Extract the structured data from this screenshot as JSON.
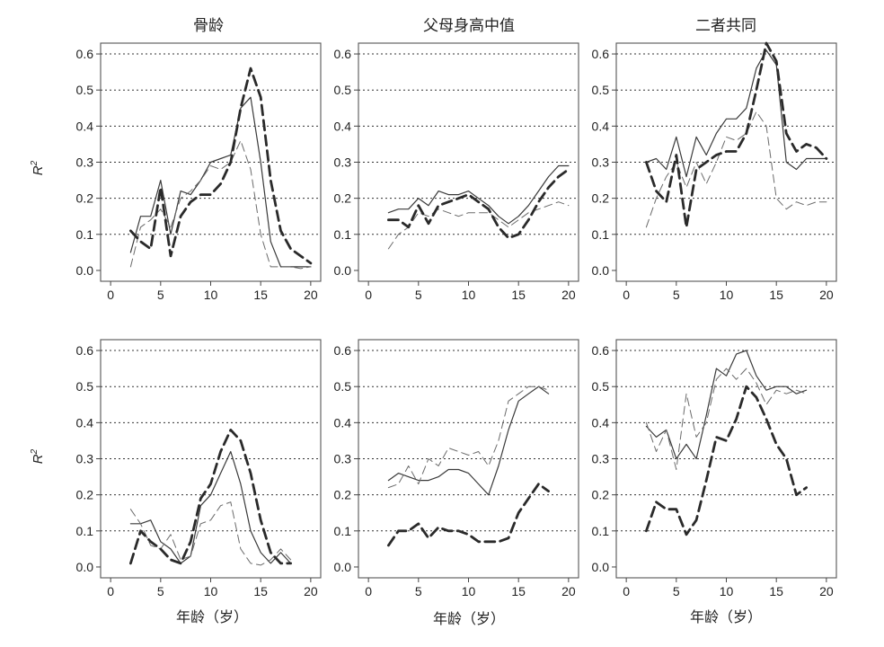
{
  "column_titles": [
    "骨龄",
    "父母身高中值",
    "二者共同"
  ],
  "row_ylabel": "R",
  "row_ylabel_sup": "2",
  "xlabel": "年龄（岁）",
  "chart_data": [
    {
      "type": "line",
      "row": 0,
      "col": 0,
      "title": "骨龄",
      "ylabel": "R²",
      "xlim": [
        -1,
        21
      ],
      "ylim": [
        -0.03,
        0.63
      ],
      "xticks": [
        0,
        5,
        10,
        15,
        20
      ],
      "yticks": [
        0.0,
        0.1,
        0.2,
        0.3,
        0.4,
        0.5,
        0.6
      ],
      "grid": "horizontal-dotted",
      "series": [
        {
          "style": "thin-solid",
          "x": [
            2,
            3,
            4,
            5,
            6,
            7,
            8,
            9,
            10,
            11,
            12,
            13,
            14,
            15,
            16,
            17,
            18,
            19,
            20
          ],
          "y": [
            0.05,
            0.15,
            0.15,
            0.25,
            0.1,
            0.22,
            0.21,
            0.25,
            0.3,
            0.31,
            0.32,
            0.45,
            0.48,
            0.3,
            0.08,
            0.01,
            0.01,
            0.01,
            0.01
          ]
        },
        {
          "style": "thin-dashed",
          "x": [
            2,
            3,
            4,
            5,
            6,
            7,
            8,
            9,
            10,
            11,
            12,
            13,
            14,
            15,
            16,
            17,
            18,
            19,
            20
          ],
          "y": [
            0.01,
            0.12,
            0.14,
            0.17,
            0.12,
            0.2,
            0.22,
            0.25,
            0.29,
            0.28,
            0.3,
            0.36,
            0.28,
            0.1,
            0.01,
            0.01,
            0.01,
            0.005,
            0.01
          ]
        },
        {
          "style": "thick-dashed",
          "x": [
            2,
            3,
            4,
            5,
            6,
            7,
            8,
            9,
            10,
            11,
            12,
            13,
            14,
            15,
            16,
            17,
            18,
            19,
            20
          ],
          "y": [
            0.11,
            0.08,
            0.06,
            0.23,
            0.04,
            0.15,
            0.19,
            0.21,
            0.21,
            0.24,
            0.3,
            0.45,
            0.56,
            0.48,
            0.25,
            0.11,
            0.06,
            0.04,
            0.02
          ]
        }
      ]
    },
    {
      "type": "line",
      "row": 0,
      "col": 1,
      "title": "父母身高中值",
      "xlim": [
        -1,
        21
      ],
      "ylim": [
        -0.03,
        0.63
      ],
      "xticks": [
        0,
        5,
        10,
        15,
        20
      ],
      "yticks": [
        0.0,
        0.1,
        0.2,
        0.3,
        0.4,
        0.5,
        0.6
      ],
      "grid": "horizontal-dotted",
      "series": [
        {
          "style": "thin-solid",
          "x": [
            2,
            3,
            4,
            5,
            6,
            7,
            8,
            9,
            10,
            11,
            12,
            13,
            14,
            15,
            16,
            17,
            18,
            19,
            20
          ],
          "y": [
            0.16,
            0.17,
            0.17,
            0.2,
            0.18,
            0.22,
            0.21,
            0.21,
            0.22,
            0.2,
            0.18,
            0.15,
            0.13,
            0.15,
            0.18,
            0.22,
            0.26,
            0.29,
            0.29
          ]
        },
        {
          "style": "thin-dashed",
          "x": [
            2,
            3,
            4,
            5,
            6,
            7,
            8,
            9,
            10,
            11,
            12,
            13,
            14,
            15,
            16,
            17,
            18,
            19,
            20
          ],
          "y": [
            0.06,
            0.1,
            0.12,
            0.16,
            0.15,
            0.17,
            0.16,
            0.15,
            0.16,
            0.16,
            0.16,
            0.14,
            0.12,
            0.14,
            0.16,
            0.17,
            0.18,
            0.19,
            0.18
          ]
        },
        {
          "style": "thick-dashed",
          "x": [
            2,
            3,
            4,
            5,
            6,
            7,
            8,
            9,
            10,
            11,
            12,
            13,
            14,
            15,
            16,
            17,
            18,
            19,
            20
          ],
          "y": [
            0.14,
            0.14,
            0.12,
            0.18,
            0.13,
            0.18,
            0.19,
            0.2,
            0.21,
            0.19,
            0.17,
            0.12,
            0.09,
            0.1,
            0.14,
            0.19,
            0.23,
            0.26,
            0.28
          ]
        }
      ]
    },
    {
      "type": "line",
      "row": 0,
      "col": 2,
      "title": "二者共同",
      "xlim": [
        -1,
        21
      ],
      "ylim": [
        -0.03,
        0.63
      ],
      "xticks": [
        0,
        5,
        10,
        15,
        20
      ],
      "yticks": [
        0.0,
        0.1,
        0.2,
        0.3,
        0.4,
        0.5,
        0.6
      ],
      "grid": "horizontal-dotted",
      "series": [
        {
          "style": "thin-solid",
          "x": [
            2,
            3,
            4,
            5,
            6,
            7,
            8,
            9,
            10,
            11,
            12,
            13,
            14,
            15,
            16,
            17,
            18,
            19,
            20
          ],
          "y": [
            0.3,
            0.31,
            0.28,
            0.37,
            0.26,
            0.37,
            0.32,
            0.38,
            0.42,
            0.42,
            0.45,
            0.56,
            0.61,
            0.57,
            0.3,
            0.28,
            0.31,
            0.31,
            0.31
          ]
        },
        {
          "style": "thin-dashed",
          "x": [
            2,
            3,
            4,
            5,
            6,
            7,
            8,
            9,
            10,
            11,
            12,
            13,
            14,
            15,
            16,
            17,
            18,
            19,
            20
          ],
          "y": [
            0.12,
            0.2,
            0.26,
            0.3,
            0.23,
            0.3,
            0.24,
            0.3,
            0.37,
            0.36,
            0.38,
            0.44,
            0.4,
            0.2,
            0.17,
            0.19,
            0.18,
            0.19,
            0.19
          ]
        },
        {
          "style": "thick-dashed",
          "x": [
            2,
            3,
            4,
            5,
            6,
            7,
            8,
            9,
            10,
            11,
            12,
            13,
            14,
            15,
            16,
            17,
            18,
            19,
            20
          ],
          "y": [
            0.3,
            0.22,
            0.19,
            0.32,
            0.12,
            0.28,
            0.3,
            0.32,
            0.33,
            0.33,
            0.38,
            0.5,
            0.63,
            0.58,
            0.38,
            0.33,
            0.35,
            0.34,
            0.31
          ]
        }
      ]
    },
    {
      "type": "line",
      "row": 1,
      "col": 0,
      "ylabel": "R²",
      "xlabel": "年龄（岁）",
      "xlim": [
        -1,
        21
      ],
      "ylim": [
        -0.03,
        0.63
      ],
      "xticks": [
        0,
        5,
        10,
        15,
        20
      ],
      "yticks": [
        0.0,
        0.1,
        0.2,
        0.3,
        0.4,
        0.5,
        0.6
      ],
      "grid": "horizontal-dotted",
      "series": [
        {
          "style": "thin-solid",
          "x": [
            2,
            3,
            4,
            5,
            6,
            7,
            8,
            9,
            10,
            11,
            12,
            13,
            14,
            15,
            16,
            17,
            18
          ],
          "y": [
            0.12,
            0.12,
            0.13,
            0.07,
            0.05,
            0.01,
            0.03,
            0.17,
            0.2,
            0.26,
            0.32,
            0.23,
            0.1,
            0.04,
            0.01,
            0.04,
            0.01
          ]
        },
        {
          "style": "thin-dashed",
          "x": [
            2,
            3,
            4,
            5,
            6,
            7,
            8,
            9,
            10,
            11,
            12,
            13,
            14,
            15,
            16,
            17,
            18
          ],
          "y": [
            0.16,
            0.12,
            0.06,
            0.05,
            0.09,
            0.02,
            0.03,
            0.12,
            0.13,
            0.17,
            0.18,
            0.05,
            0.01,
            0.005,
            0.02,
            0.05,
            0.02
          ]
        },
        {
          "style": "thick-dashed",
          "x": [
            2,
            3,
            4,
            5,
            6,
            7,
            8,
            9,
            10,
            11,
            12,
            13,
            14,
            15,
            16,
            17,
            18
          ],
          "y": [
            0.01,
            0.1,
            0.07,
            0.05,
            0.02,
            0.01,
            0.07,
            0.19,
            0.23,
            0.32,
            0.38,
            0.35,
            0.26,
            0.13,
            0.04,
            0.01,
            0.01
          ]
        }
      ]
    },
    {
      "type": "line",
      "row": 1,
      "col": 1,
      "xlabel": "年龄（岁）",
      "xlim": [
        -1,
        21
      ],
      "ylim": [
        -0.03,
        0.63
      ],
      "xticks": [
        0,
        5,
        10,
        15,
        20
      ],
      "yticks": [
        0.0,
        0.1,
        0.2,
        0.3,
        0.4,
        0.5,
        0.6
      ],
      "grid": "horizontal-dotted",
      "series": [
        {
          "style": "thin-solid",
          "x": [
            2,
            3,
            4,
            5,
            6,
            7,
            8,
            9,
            10,
            11,
            12,
            13,
            14,
            15,
            16,
            17,
            18
          ],
          "y": [
            0.24,
            0.26,
            0.25,
            0.24,
            0.24,
            0.25,
            0.27,
            0.27,
            0.26,
            0.23,
            0.2,
            0.28,
            0.38,
            0.46,
            0.48,
            0.5,
            0.48
          ]
        },
        {
          "style": "thin-dashed",
          "x": [
            2,
            3,
            4,
            5,
            6,
            7,
            8,
            9,
            10,
            11,
            12,
            13,
            14,
            15,
            16,
            17,
            18
          ],
          "y": [
            0.22,
            0.23,
            0.28,
            0.23,
            0.3,
            0.28,
            0.33,
            0.32,
            0.31,
            0.32,
            0.28,
            0.35,
            0.46,
            0.48,
            0.5,
            0.5,
            0.49
          ]
        },
        {
          "style": "thick-dashed",
          "x": [
            2,
            3,
            4,
            5,
            6,
            7,
            8,
            9,
            10,
            11,
            12,
            13,
            14,
            15,
            16,
            17,
            18
          ],
          "y": [
            0.06,
            0.1,
            0.1,
            0.12,
            0.08,
            0.11,
            0.1,
            0.1,
            0.09,
            0.07,
            0.07,
            0.07,
            0.08,
            0.15,
            0.19,
            0.23,
            0.21
          ]
        }
      ]
    },
    {
      "type": "line",
      "row": 1,
      "col": 2,
      "xlabel": "年龄（岁）",
      "xlim": [
        -1,
        21
      ],
      "ylim": [
        -0.03,
        0.63
      ],
      "xticks": [
        0,
        5,
        10,
        15,
        20
      ],
      "yticks": [
        0.0,
        0.1,
        0.2,
        0.3,
        0.4,
        0.5,
        0.6
      ],
      "grid": "horizontal-dotted",
      "series": [
        {
          "style": "thin-solid",
          "x": [
            2,
            3,
            4,
            5,
            6,
            7,
            8,
            9,
            10,
            11,
            12,
            13,
            14,
            15,
            16,
            17,
            18
          ],
          "y": [
            0.39,
            0.36,
            0.38,
            0.3,
            0.34,
            0.3,
            0.42,
            0.55,
            0.53,
            0.59,
            0.6,
            0.53,
            0.49,
            0.5,
            0.5,
            0.48,
            0.49
          ]
        },
        {
          "style": "thin-dashed",
          "x": [
            2,
            3,
            4,
            5,
            6,
            7,
            8,
            9,
            10,
            11,
            12,
            13,
            14,
            15,
            16,
            17,
            18
          ],
          "y": [
            0.4,
            0.32,
            0.38,
            0.27,
            0.48,
            0.36,
            0.4,
            0.52,
            0.55,
            0.52,
            0.55,
            0.51,
            0.45,
            0.49,
            0.48,
            0.49,
            0.48
          ]
        },
        {
          "style": "thick-dashed",
          "x": [
            2,
            3,
            4,
            5,
            6,
            7,
            8,
            9,
            10,
            11,
            12,
            13,
            14,
            15,
            16,
            17,
            18
          ],
          "y": [
            0.1,
            0.18,
            0.16,
            0.16,
            0.09,
            0.13,
            0.24,
            0.36,
            0.35,
            0.41,
            0.5,
            0.47,
            0.41,
            0.34,
            0.3,
            0.2,
            0.22
          ]
        }
      ]
    }
  ]
}
